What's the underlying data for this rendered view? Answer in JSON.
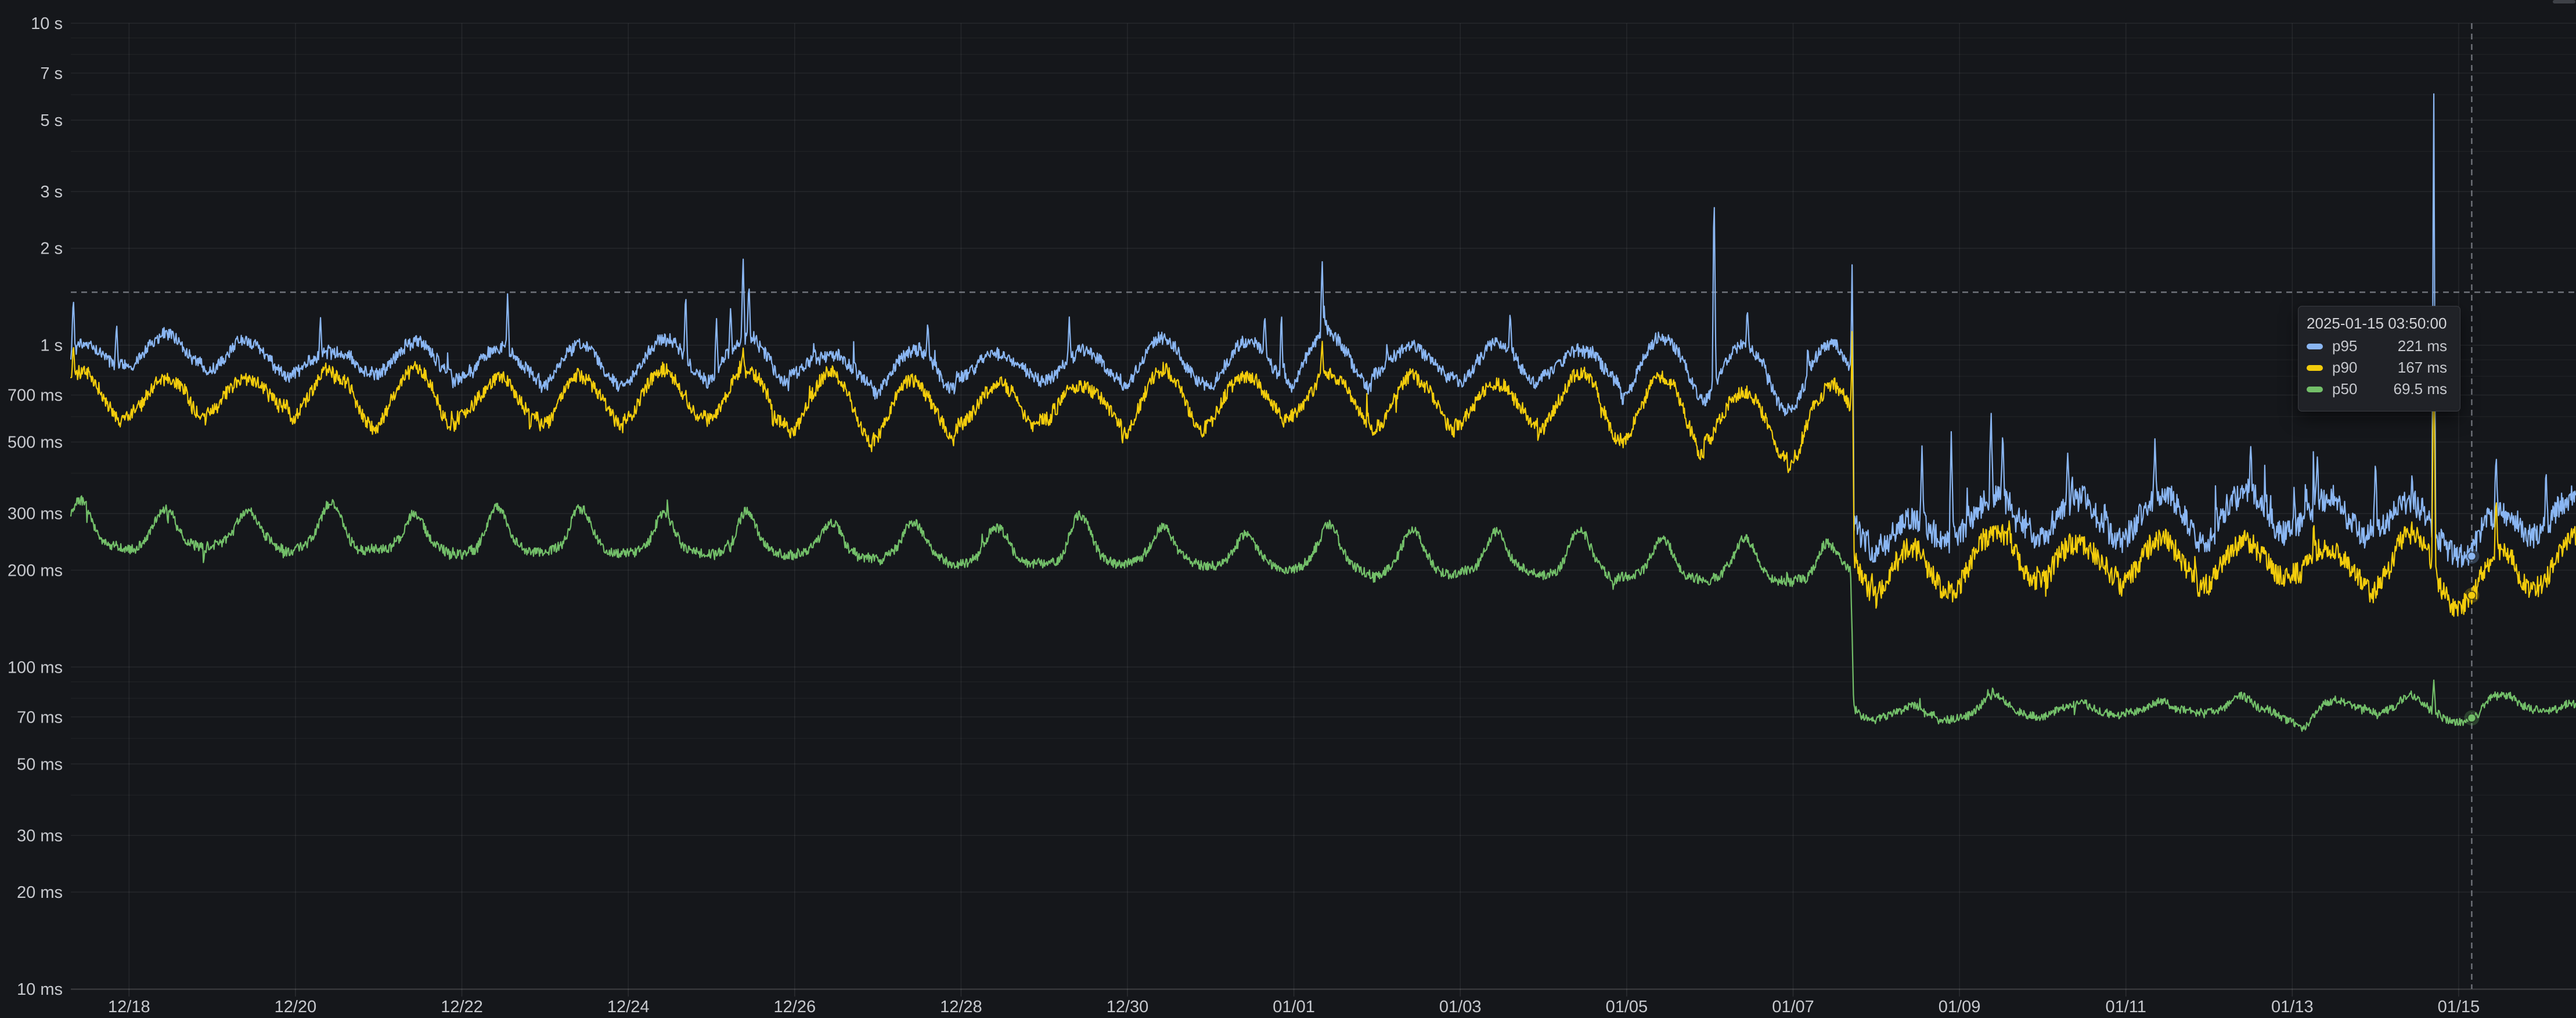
{
  "panel": {
    "background": "#15171b",
    "grid_major_color": "rgba(255,255,255,0.07)",
    "grid_minor_color": "rgba(255,255,255,0.038)",
    "axis_line_color": "rgba(255,255,255,0.13)",
    "tick_stub_color": "rgba(255,255,255,0.10)",
    "axis_text_color": "#c7c9ce",
    "crosshair_color": "#7a7e85",
    "tooltip_background": "#202227",
    "tooltip_border": "#3a3c42",
    "tooltip_text": "#c6c8cd",
    "scrollbar_color": "#3e4147"
  },
  "chart_data": {
    "type": "line",
    "title": "",
    "xlabel": "",
    "ylabel": "",
    "legend_position": "none",
    "grid": true,
    "x_axis": {
      "unit": "date",
      "domain_days": [
        -0.7,
        29.41
      ],
      "tick_interval_days": 2,
      "ticks": [
        {
          "label": "12/18",
          "day": 0
        },
        {
          "label": "12/20",
          "day": 2
        },
        {
          "label": "12/22",
          "day": 4
        },
        {
          "label": "12/24",
          "day": 6
        },
        {
          "label": "12/26",
          "day": 8
        },
        {
          "label": "12/28",
          "day": 10
        },
        {
          "label": "12/30",
          "day": 12
        },
        {
          "label": "01/01",
          "day": 14
        },
        {
          "label": "01/03",
          "day": 16
        },
        {
          "label": "01/05",
          "day": 18
        },
        {
          "label": "01/07",
          "day": 20
        },
        {
          "label": "01/09",
          "day": 22
        },
        {
          "label": "01/11",
          "day": 24
        },
        {
          "label": "01/13",
          "day": 26
        },
        {
          "label": "01/15",
          "day": 28
        }
      ]
    },
    "y_axis": {
      "scale": "log10",
      "unit": "seconds",
      "domain_s": [
        0.01,
        10
      ],
      "ticks": [
        {
          "label": "10 s",
          "v": 10
        },
        {
          "label": "7 s",
          "v": 7
        },
        {
          "label": "5 s",
          "v": 5
        },
        {
          "label": "3 s",
          "v": 3
        },
        {
          "label": "2 s",
          "v": 2
        },
        {
          "label": "1 s",
          "v": 1
        },
        {
          "label": "700 ms",
          "v": 0.7
        },
        {
          "label": "500 ms",
          "v": 0.5
        },
        {
          "label": "300 ms",
          "v": 0.3
        },
        {
          "label": "200 ms",
          "v": 0.2
        },
        {
          "label": "100 ms",
          "v": 0.1
        },
        {
          "label": "70 ms",
          "v": 0.07
        },
        {
          "label": "50 ms",
          "v": 0.05
        },
        {
          "label": "30 ms",
          "v": 0.03
        },
        {
          "label": "20 ms",
          "v": 0.02
        },
        {
          "label": "10 ms",
          "v": 0.01
        }
      ],
      "minor_mantissas": [
        9,
        8,
        6,
        4
      ]
    },
    "step_day": 20.71,
    "step_description": "All three percentile series drop sharply around 01/07 ~17:00: p95 ~880ms to ~290ms, p90 ~640ms to ~210ms, p50 ~195ms to ~72ms",
    "daily_cycle": "All series oscillate with a 1-day period, peaks around 10:00",
    "sample_step_day": 0.008,
    "series": [
      {
        "name": "p95",
        "color": "#8ab6f2",
        "line_width": 2.2,
        "synth": {
          "seed": 3,
          "trend": [
            [
              -0.7,
              880
            ],
            [
              0,
              950
            ],
            [
              0.5,
              975
            ],
            [
              1,
              905
            ],
            [
              2,
              900
            ],
            [
              3,
              910
            ],
            [
              4,
              885
            ],
            [
              5,
              880
            ],
            [
              6,
              910
            ],
            [
              7,
              945
            ],
            [
              7.6,
              915
            ],
            [
              8,
              875
            ],
            [
              9,
              855
            ],
            [
              10,
              865
            ],
            [
              11,
              875
            ],
            [
              12,
              865
            ],
            [
              13,
              880
            ],
            [
              13.8,
              935
            ],
            [
              14.3,
              945
            ],
            [
              15,
              885
            ],
            [
              16,
              875
            ],
            [
              17,
              880
            ],
            [
              18,
              885
            ],
            [
              19,
              865
            ],
            [
              19.8,
              830
            ],
            [
              20.3,
              825
            ],
            [
              20.69,
              865
            ],
            [
              20.73,
              310
            ],
            [
              21,
              262
            ],
            [
              21.6,
              252
            ],
            [
              22.1,
              298
            ],
            [
              22.45,
              315
            ],
            [
              23,
              285
            ],
            [
              23.5,
              299
            ],
            [
              24,
              297
            ],
            [
              24.5,
              304
            ],
            [
              25,
              291
            ],
            [
              25.5,
              296
            ],
            [
              26,
              299
            ],
            [
              26.5,
              288
            ],
            [
              27,
              294
            ],
            [
              27.5,
              299
            ],
            [
              28,
              252
            ],
            [
              28.16,
              240
            ],
            [
              28.5,
              284
            ],
            [
              29,
              299
            ],
            [
              29.41,
              309
            ]
          ],
          "wave": {
            "type": "sin",
            "peak_frac": 0.43,
            "amp_keys": [
              [
                -0.7,
                0.12
              ],
              [
                10,
                0.13
              ],
              [
                17,
                0.14
              ],
              [
                19,
                0.185
              ],
              [
                20.7,
                0.185
              ],
              [
                20.73,
                0.125
              ],
              [
                29.41,
                0.125
              ]
            ]
          },
          "noise": {
            "ou": 0.016,
            "white_p1": 0.045,
            "white_p2": 0.09
          },
          "upspikes": {
            "p1": [
              0.006,
              0.45
            ],
            "p2": [
              0.02,
              0.85
            ],
            "decay": 0.55,
            "p2_dense_until": 24,
            "dense_factor": 1.5
          },
          "downspikes": {
            "p1": [
              0.004,
              0.13
            ],
            "p2": [
              0.004,
              0.12
            ],
            "decay": 0.6
          },
          "spikes": [
            [
              -0.67,
              1430
            ],
            [
              -0.15,
              1190
            ],
            [
              2.3,
              1230
            ],
            [
              4.55,
              1470
            ],
            [
              6.69,
              1480
            ],
            [
              7.06,
              1230
            ],
            [
              7.23,
              1320
            ],
            [
              7.38,
              1900
            ],
            [
              7.45,
              1580
            ],
            [
              9.6,
              1190
            ],
            [
              11.3,
              1240
            ],
            [
              13.65,
              1260
            ],
            [
              13.85,
              1310
            ],
            [
              14.34,
              1860
            ],
            [
              16.6,
              1280
            ],
            [
              19.05,
              3300
            ],
            [
              19.45,
              1310
            ],
            [
              20.71,
              1890
            ],
            [
              21.55,
              500
            ],
            [
              21.9,
              560
            ],
            [
              22.38,
              630
            ],
            [
              22.52,
              545
            ],
            [
              23.3,
              470
            ],
            [
              24.35,
              520
            ],
            [
              25.5,
              490
            ],
            [
              26.3,
              455
            ],
            [
              27,
              450
            ],
            [
              27.7,
              7000
            ],
            [
              28.45,
              465
            ],
            [
              29.05,
              420
            ]
          ]
        }
      },
      {
        "name": "p90",
        "color": "#f2cc0c",
        "line_width": 2.2,
        "synth": {
          "seed": 8,
          "trend": [
            [
              -0.7,
              700
            ],
            [
              0,
              718
            ],
            [
              0.3,
              658
            ],
            [
              1,
              688
            ],
            [
              2,
              696
            ],
            [
              3,
              705
            ],
            [
              4,
              686
            ],
            [
              5,
              690
            ],
            [
              6,
              702
            ],
            [
              7,
              728
            ],
            [
              7.6,
              708
            ],
            [
              8,
              672
            ],
            [
              9,
              643
            ],
            [
              10,
              665
            ],
            [
              11,
              678
            ],
            [
              12,
              670
            ],
            [
              13,
              678
            ],
            [
              13.8,
              708
            ],
            [
              14.3,
              712
            ],
            [
              15,
              670
            ],
            [
              16,
              660
            ],
            [
              17,
              666
            ],
            [
              18,
              660
            ],
            [
              19,
              636
            ],
            [
              19.8,
              583
            ],
            [
              20.3,
              568
            ],
            [
              20.69,
              638
            ],
            [
              20.73,
              228
            ],
            [
              21,
              196
            ],
            [
              21.6,
              188
            ],
            [
              22.1,
              221
            ],
            [
              22.45,
              231
            ],
            [
              23,
              207
            ],
            [
              23.5,
              217
            ],
            [
              24,
              215
            ],
            [
              24.5,
              221
            ],
            [
              25,
              209
            ],
            [
              25.5,
              214
            ],
            [
              26,
              219
            ],
            [
              26.5,
              207
            ],
            [
              27,
              211
            ],
            [
              27.5,
              217
            ],
            [
              28,
              185
            ],
            [
              28.16,
              176
            ],
            [
              28.5,
              204
            ],
            [
              29,
              219
            ],
            [
              29.41,
              225
            ]
          ],
          "wave": {
            "type": "sin",
            "peak_frac": 0.43,
            "amp_keys": [
              [
                -0.7,
                0.15
              ],
              [
                10,
                0.17
              ],
              [
                17,
                0.18
              ],
              [
                19,
                0.225
              ],
              [
                20.7,
                0.225
              ],
              [
                20.73,
                0.145
              ],
              [
                29.41,
                0.145
              ]
            ]
          },
          "noise": {
            "ou": 0.016,
            "white_p1": 0.05,
            "white_p2": 0.08
          },
          "upspikes": {
            "p1": [
              0.004,
              0.3
            ],
            "p2": [
              0.012,
              0.5
            ],
            "decay": 0.55
          },
          "downspikes": {
            "p1": [
              0.007,
              0.22
            ],
            "p2": [
              0.005,
              0.15
            ],
            "decay": 0.6
          },
          "spikes": [
            [
              -0.67,
              1020
            ],
            [
              7.38,
              985
            ],
            [
              7.45,
              830
            ],
            [
              14.34,
              1040
            ],
            [
              20.71,
              1160
            ],
            [
              27.7,
              1250
            ],
            [
              28.45,
              340
            ]
          ]
        }
      },
      {
        "name": "p50",
        "color": "#73bf69",
        "line_width": 2.2,
        "synth": {
          "seed": 21,
          "trend": [
            [
              -0.7,
              250
            ],
            [
              1,
              243
            ],
            [
              3,
              237
            ],
            [
              5,
              233
            ],
            [
              7,
              237
            ],
            [
              9,
              225
            ],
            [
              11,
              219
            ],
            [
              13,
              212
            ],
            [
              14,
              208
            ],
            [
              15,
              205
            ],
            [
              16,
              203
            ],
            [
              17,
              202
            ],
            [
              18,
              199
            ],
            [
              18.9,
              196
            ],
            [
              19.8,
              192
            ],
            [
              20.3,
              190
            ],
            [
              20.69,
              196
            ],
            [
              20.73,
              74
            ],
            [
              21.3,
              68.5
            ],
            [
              21.8,
              71
            ],
            [
              22.3,
              75
            ],
            [
              22.8,
              71.5
            ],
            [
              23.5,
              72
            ],
            [
              24,
              74
            ],
            [
              24.6,
              71
            ],
            [
              25.2,
              74
            ],
            [
              25.8,
              72.5
            ],
            [
              26.15,
              66
            ],
            [
              26.5,
              74.5
            ],
            [
              27,
              76
            ],
            [
              27.4,
              73.5
            ],
            [
              27.9,
              69.5
            ],
            [
              28.16,
              67.5
            ],
            [
              28.6,
              76.5
            ],
            [
              29,
              74.5
            ],
            [
              29.41,
              72
            ]
          ],
          "wave": {
            "type": "bump",
            "peak_frac": 0.43,
            "bump_width": 0.11,
            "sin_amp": 0.035,
            "amp_keys": [
              [
                -0.7,
                0.27
              ],
              [
                20.7,
                0.24
              ],
              [
                20.73,
                0.06
              ],
              [
                29.41,
                0.06
              ]
            ]
          },
          "noise": {
            "ou": 0.012,
            "white_p1": 0.035,
            "white_p2": 0.028
          },
          "upspikes": {
            "p1": [
              0.003,
              0.22
            ],
            "p2": [
              0.005,
              0.18
            ],
            "decay": 0.5
          },
          "downspikes": {
            "p1": [
              0.005,
              0.22
            ],
            "p2": [
              0.004,
              0.14
            ],
            "decay": 0.6
          },
          "spikes": [
            [
              22.4,
              87
            ],
            [
              27.7,
              92
            ]
          ]
        }
      }
    ]
  },
  "hover": {
    "day": 28.157,
    "time_label": "2025-01-15 03:50:00",
    "crosshair_y_value_s": 1.46,
    "points": [
      {
        "series": "p95",
        "value_ms": 221
      },
      {
        "series": "p90",
        "value_ms": 167
      },
      {
        "series": "p50",
        "value_ms": 69.5
      }
    ]
  },
  "tooltip": {
    "timestamp": "2025-01-15 03:50:00",
    "rows": [
      {
        "label": "p95",
        "value": "221 ms"
      },
      {
        "label": "p90",
        "value": "167 ms"
      },
      {
        "label": "p50",
        "value": "69.5 ms"
      }
    ]
  }
}
